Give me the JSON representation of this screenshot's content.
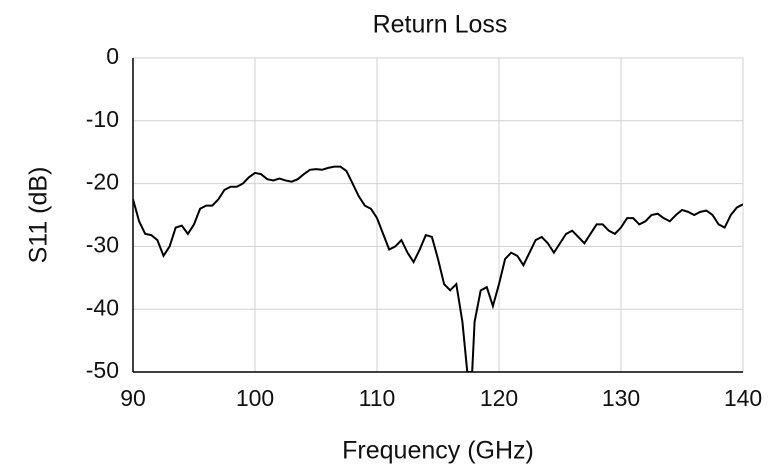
{
  "chart_data": {
    "type": "line",
    "title": "Return Loss",
    "x_label": "Frequency (GHz)",
    "y_label": "S11 (dB)",
    "x": [
      90,
      90.5,
      91,
      91.5,
      92,
      92.5,
      93,
      93.5,
      94,
      94.5,
      95,
      95.5,
      96,
      96.5,
      97,
      97.5,
      98,
      98.5,
      99,
      99.5,
      100,
      100.5,
      101,
      101.5,
      102,
      102.5,
      103,
      103.5,
      104,
      104.5,
      105,
      105.5,
      106,
      106.5,
      107,
      107.5,
      108,
      108.5,
      109,
      109.5,
      110,
      110.5,
      111,
      111.5,
      112,
      112.5,
      113,
      113.5,
      114,
      114.5,
      115,
      115.5,
      116,
      116.5,
      117,
      117.4,
      117.8,
      118,
      118.5,
      119,
      119.5,
      120,
      120.5,
      121,
      121.5,
      122,
      122.5,
      123,
      123.5,
      124,
      124.5,
      125,
      125.5,
      126,
      126.5,
      127,
      127.5,
      128,
      128.5,
      129,
      129.5,
      130,
      130.5,
      131,
      131.5,
      132,
      132.5,
      133,
      133.5,
      134,
      134.5,
      135,
      135.5,
      136,
      136.5,
      137,
      137.5,
      138,
      138.5,
      139,
      139.5,
      140
    ],
    "series": [
      {
        "name": "S11",
        "color": "#000000",
        "values": [
          -22.5,
          -26,
          -28,
          -28.2,
          -29,
          -31.5,
          -30,
          -27,
          -26.7,
          -28,
          -26.5,
          -24,
          -23.5,
          -23.5,
          -22.5,
          -21,
          -20.5,
          -20.5,
          -20,
          -19,
          -18.3,
          -18.5,
          -19.3,
          -19.5,
          -19.2,
          -19.5,
          -19.7,
          -19.3,
          -18.5,
          -17.8,
          -17.7,
          -17.8,
          -17.5,
          -17.3,
          -17.3,
          -18,
          -20,
          -22,
          -23.5,
          -24,
          -25.5,
          -28,
          -30.5,
          -30,
          -29,
          -31,
          -32.5,
          -30.5,
          -28.2,
          -28.5,
          -32,
          -36,
          -37,
          -36,
          -42,
          -50,
          -50,
          -42,
          -37,
          -36.5,
          -39.5,
          -36,
          -32,
          -31,
          -31.5,
          -33,
          -31,
          -29,
          -28.5,
          -29.5,
          -31,
          -29.5,
          -28,
          -27.5,
          -28.5,
          -29.5,
          -28,
          -26.5,
          -26.5,
          -27.5,
          -28,
          -27,
          -25.5,
          -25.5,
          -26.5,
          -26,
          -25,
          -24.8,
          -25.5,
          -26,
          -25,
          -24.2,
          -24.5,
          -25,
          -24.5,
          -24.3,
          -25,
          -26.5,
          -27,
          -25,
          -23.8,
          -23.3
        ]
      }
    ],
    "xlim": [
      90,
      140
    ],
    "ylim": [
      -50,
      0
    ],
    "xticks": [
      90,
      100,
      110,
      120,
      130,
      140
    ],
    "yticks": [
      -50,
      -40,
      -30,
      -20,
      -10,
      0
    ],
    "grid": true
  }
}
